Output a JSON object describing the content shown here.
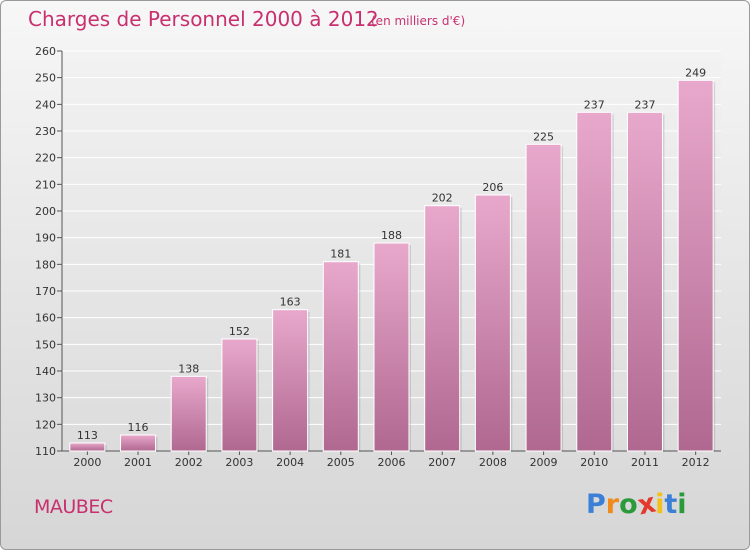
{
  "header": {
    "title": "Charges de Personnel 2000 à 2012",
    "subtitle": "(en milliers d'€)"
  },
  "footer": {
    "commune": "MAUBEC",
    "logo_text": "Proxiti"
  },
  "colors": {
    "accent": "#c8306e",
    "bar_top": "#e8a8cc",
    "bar_bottom": "#b06890"
  },
  "chart_data": {
    "type": "bar",
    "title": "Charges de Personnel 2000 à 2012",
    "subtitle": "(en milliers d'€)",
    "xlabel": "",
    "ylabel": "",
    "categories": [
      "2000",
      "2001",
      "2002",
      "2003",
      "2004",
      "2005",
      "2006",
      "2007",
      "2008",
      "2009",
      "2010",
      "2011",
      "2012"
    ],
    "values": [
      113,
      116,
      138,
      152,
      163,
      181,
      188,
      202,
      206,
      225,
      237,
      237,
      249
    ],
    "ylim": [
      110,
      260
    ],
    "yticks": [
      110,
      120,
      130,
      140,
      150,
      160,
      170,
      180,
      190,
      200,
      210,
      220,
      230,
      240,
      250,
      260
    ],
    "grid": true,
    "legend": "none"
  }
}
